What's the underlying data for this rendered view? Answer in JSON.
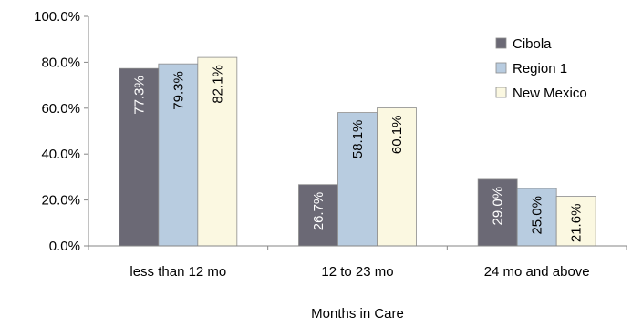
{
  "chart_data": {
    "type": "bar",
    "title": "",
    "xlabel": "Months in Care",
    "ylabel": "",
    "ylim": [
      0,
      100
    ],
    "yticks": [
      "0.0%",
      "20.0%",
      "40.0%",
      "60.0%",
      "80.0%",
      "100.0%"
    ],
    "grid": false,
    "legend_position": "right",
    "categories": [
      "less than 12 mo",
      "12 to 23 mo",
      "24 mo and above"
    ],
    "series": [
      {
        "name": "Cibola",
        "values": [
          77.3,
          26.7,
          29.0
        ],
        "labels": [
          "77.3%",
          "26.7%",
          "29.0%"
        ],
        "color": "#6b6975",
        "label_color": "#ffffff"
      },
      {
        "name": "Region 1",
        "values": [
          79.3,
          58.1,
          25.0
        ],
        "labels": [
          "79.3%",
          "58.1%",
          "25.0%"
        ],
        "color": "#b8cce0",
        "label_color": "#000000"
      },
      {
        "name": "New Mexico",
        "values": [
          82.1,
          60.1,
          21.6
        ],
        "labels": [
          "82.1%",
          "60.1%",
          "21.6%"
        ],
        "color": "#fbf8e1",
        "label_color": "#000000"
      }
    ]
  }
}
